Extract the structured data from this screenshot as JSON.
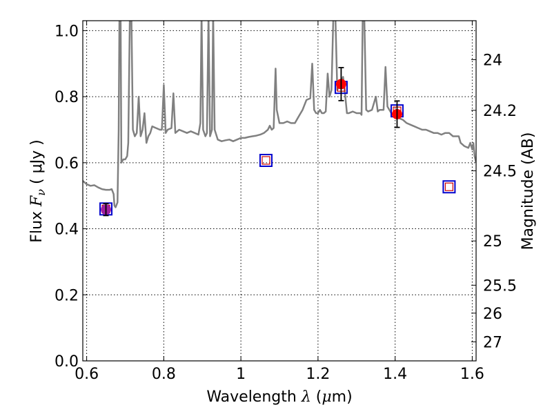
{
  "chart_data": {
    "type": "line",
    "xlabel": {
      "prefix": "Wavelength  ",
      "symbol": "λ",
      "unit_open": " (",
      "unit_mu": "μ",
      "unit_rest": "m)"
    },
    "ylabel": {
      "prefix": "Flux  ",
      "symbol": "F",
      "sub": "ν",
      "unit": "  ( μJy )"
    },
    "y2label": "Magnitude (AB)",
    "xlim": [
      0.59,
      1.61
    ],
    "ylim": [
      0.0,
      1.03
    ],
    "grid": true,
    "x_ticks": [
      0.6,
      0.8,
      1.0,
      1.2,
      1.4,
      1.6
    ],
    "x_tick_labels": [
      "0.6",
      "0.8",
      "1",
      "1.2",
      "1.4",
      "1.6"
    ],
    "y_ticks": [
      0.0,
      0.2,
      0.4,
      0.6,
      0.8,
      1.0
    ],
    "y_tick_labels": [
      "0.0",
      "0.2",
      "0.4",
      "0.6",
      "0.8",
      "1.0"
    ],
    "y2_ticks": [
      {
        "label": "24",
        "mag": 24.0
      },
      {
        "label": "24.2",
        "mag": 24.2
      },
      {
        "label": "24.5",
        "mag": 24.5
      },
      {
        "label": "25",
        "mag": 25.0
      },
      {
        "label": "25.5",
        "mag": 25.5
      },
      {
        "label": "26",
        "mag": 26.0
      },
      {
        "label": "27",
        "mag": 27.0
      }
    ],
    "series": [
      {
        "type": "line",
        "color": "#808080",
        "points": [
          [
            0.59,
            0.545
          ],
          [
            0.6,
            0.535
          ],
          [
            0.61,
            0.53
          ],
          [
            0.62,
            0.532
          ],
          [
            0.63,
            0.525
          ],
          [
            0.64,
            0.52
          ],
          [
            0.65,
            0.518
          ],
          [
            0.66,
            0.518
          ],
          [
            0.665,
            0.52
          ],
          [
            0.67,
            0.505
          ],
          [
            0.672,
            0.47
          ],
          [
            0.675,
            0.465
          ],
          [
            0.68,
            0.48
          ],
          [
            0.683,
            0.7
          ],
          [
            0.685,
            1.05
          ],
          [
            0.688,
            1.05
          ],
          [
            0.69,
            0.6
          ],
          [
            0.695,
            0.61
          ],
          [
            0.7,
            0.61
          ],
          [
            0.705,
            0.62
          ],
          [
            0.708,
            0.66
          ],
          [
            0.712,
            1.05
          ],
          [
            0.716,
            1.05
          ],
          [
            0.72,
            0.7
          ],
          [
            0.725,
            0.68
          ],
          [
            0.73,
            0.69
          ],
          [
            0.735,
            0.8
          ],
          [
            0.74,
            0.68
          ],
          [
            0.745,
            0.7
          ],
          [
            0.75,
            0.75
          ],
          [
            0.755,
            0.66
          ],
          [
            0.76,
            0.68
          ],
          [
            0.765,
            0.69
          ],
          [
            0.77,
            0.71
          ],
          [
            0.78,
            0.705
          ],
          [
            0.79,
            0.7
          ],
          [
            0.795,
            0.7
          ],
          [
            0.8,
            0.835
          ],
          [
            0.805,
            0.69
          ],
          [
            0.81,
            0.7
          ],
          [
            0.82,
            0.705
          ],
          [
            0.825,
            0.81
          ],
          [
            0.83,
            0.69
          ],
          [
            0.84,
            0.7
          ],
          [
            0.85,
            0.695
          ],
          [
            0.86,
            0.69
          ],
          [
            0.87,
            0.695
          ],
          [
            0.88,
            0.69
          ],
          [
            0.89,
            0.685
          ],
          [
            0.895,
            0.72
          ],
          [
            0.898,
            1.05
          ],
          [
            0.902,
            0.7
          ],
          [
            0.908,
            0.68
          ],
          [
            0.912,
            0.69
          ],
          [
            0.916,
            1.05
          ],
          [
            0.92,
            0.68
          ],
          [
            0.925,
            0.7
          ],
          [
            0.928,
            1.05
          ],
          [
            0.932,
            0.7
          ],
          [
            0.94,
            0.67
          ],
          [
            0.95,
            0.665
          ],
          [
            0.96,
            0.668
          ],
          [
            0.97,
            0.67
          ],
          [
            0.98,
            0.665
          ],
          [
            0.99,
            0.67
          ],
          [
            1.0,
            0.675
          ],
          [
            1.01,
            0.675
          ],
          [
            1.02,
            0.678
          ],
          [
            1.03,
            0.68
          ],
          [
            1.04,
            0.682
          ],
          [
            1.05,
            0.685
          ],
          [
            1.06,
            0.69
          ],
          [
            1.07,
            0.7
          ],
          [
            1.075,
            0.712
          ],
          [
            1.08,
            0.7
          ],
          [
            1.085,
            0.705
          ],
          [
            1.09,
            0.885
          ],
          [
            1.093,
            0.76
          ],
          [
            1.1,
            0.72
          ],
          [
            1.11,
            0.72
          ],
          [
            1.12,
            0.725
          ],
          [
            1.13,
            0.72
          ],
          [
            1.14,
            0.72
          ],
          [
            1.15,
            0.74
          ],
          [
            1.16,
            0.76
          ],
          [
            1.17,
            0.79
          ],
          [
            1.18,
            0.795
          ],
          [
            1.185,
            0.9
          ],
          [
            1.19,
            0.76
          ],
          [
            1.195,
            0.75
          ],
          [
            1.2,
            0.75
          ],
          [
            1.205,
            0.76
          ],
          [
            1.21,
            0.75
          ],
          [
            1.215,
            0.75
          ],
          [
            1.22,
            0.755
          ],
          [
            1.225,
            0.87
          ],
          [
            1.23,
            0.8
          ],
          [
            1.235,
            0.82
          ],
          [
            1.24,
            1.05
          ],
          [
            1.245,
            1.05
          ],
          [
            1.25,
            0.82
          ],
          [
            1.258,
            0.84
          ],
          [
            1.265,
            0.86
          ],
          [
            1.27,
            0.81
          ],
          [
            1.275,
            0.75
          ],
          [
            1.28,
            0.75
          ],
          [
            1.29,
            0.755
          ],
          [
            1.3,
            0.75
          ],
          [
            1.31,
            0.75
          ],
          [
            1.313,
            0.745
          ],
          [
            1.316,
            1.05
          ],
          [
            1.32,
            1.05
          ],
          [
            1.325,
            0.76
          ],
          [
            1.33,
            0.755
          ],
          [
            1.34,
            0.76
          ],
          [
            1.35,
            0.8
          ],
          [
            1.355,
            0.755
          ],
          [
            1.36,
            0.76
          ],
          [
            1.37,
            0.76
          ],
          [
            1.375,
            0.89
          ],
          [
            1.38,
            0.77
          ],
          [
            1.39,
            0.75
          ],
          [
            1.4,
            0.74
          ],
          [
            1.41,
            0.735
          ],
          [
            1.42,
            0.73
          ],
          [
            1.43,
            0.72
          ],
          [
            1.44,
            0.715
          ],
          [
            1.45,
            0.71
          ],
          [
            1.46,
            0.705
          ],
          [
            1.47,
            0.7
          ],
          [
            1.48,
            0.7
          ],
          [
            1.49,
            0.695
          ],
          [
            1.5,
            0.69
          ],
          [
            1.51,
            0.69
          ],
          [
            1.52,
            0.685
          ],
          [
            1.53,
            0.69
          ],
          [
            1.54,
            0.69
          ],
          [
            1.55,
            0.68
          ],
          [
            1.56,
            0.68
          ],
          [
            1.565,
            0.68
          ],
          [
            1.57,
            0.66
          ],
          [
            1.58,
            0.65
          ],
          [
            1.59,
            0.645
          ],
          [
            1.595,
            0.66
          ],
          [
            1.6,
            0.64
          ],
          [
            1.603,
            0.66
          ],
          [
            1.606,
            0.62
          ],
          [
            1.61,
            0.6
          ]
        ]
      },
      {
        "type": "squares",
        "color": "#0000cc",
        "inner_color": "#cc0000",
        "points": [
          [
            0.65,
            0.46
          ],
          [
            1.065,
            0.607
          ],
          [
            1.26,
            0.828
          ],
          [
            1.405,
            0.757
          ],
          [
            1.54,
            0.527
          ]
        ]
      },
      {
        "type": "dots",
        "color": "#ff0000",
        "points": [
          [
            1.26,
            0.838
          ],
          [
            1.405,
            0.747
          ]
        ],
        "errors": [
          0.05,
          0.04
        ]
      },
      {
        "type": "dots",
        "color": "#a020a0",
        "points": [
          [
            0.65,
            0.458
          ]
        ],
        "errors": [
          0.018
        ]
      }
    ]
  }
}
